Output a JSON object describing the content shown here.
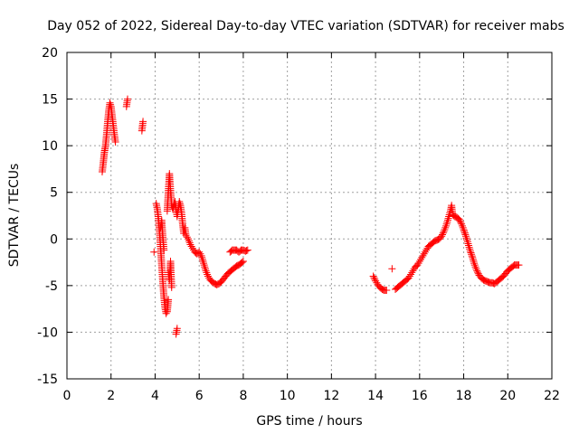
{
  "chart_data": {
    "type": "scatter",
    "title": "Day 052 of 2022, Sidereal Day-to-day VTEC variation (SDTVAR) for receiver mabs",
    "xlabel": "GPS time / hours",
    "ylabel": "SDTVAR / TECUs",
    "xlim": [
      0,
      22
    ],
    "ylim": [
      -15,
      20
    ],
    "xticks": [
      0,
      2,
      4,
      6,
      8,
      10,
      12,
      14,
      16,
      18,
      20,
      22
    ],
    "yticks": [
      -15,
      -10,
      -5,
      0,
      5,
      10,
      15,
      20
    ],
    "grid": true,
    "marker": "+",
    "color": "#ff0000",
    "series": [
      {
        "name": "SDTVAR",
        "segments": [
          [
            [
              1.6,
              7.2
            ],
            [
              1.65,
              8.2
            ],
            [
              1.7,
              9.3
            ],
            [
              1.75,
              10.0
            ],
            [
              1.8,
              11.2
            ],
            [
              1.85,
              12.6
            ],
            [
              1.9,
              13.8
            ],
            [
              1.95,
              14.6
            ],
            [
              2.0,
              14.2
            ],
            [
              2.05,
              13.2
            ],
            [
              2.1,
              12.2
            ],
            [
              2.15,
              11.2
            ],
            [
              2.2,
              10.4
            ]
          ],
          [
            [
              2.7,
              14.2
            ],
            [
              2.75,
              15.0
            ]
          ],
          [
            [
              3.4,
              11.6
            ],
            [
              3.45,
              12.6
            ]
          ],
          [
            [
              3.95,
              -1.4
            ]
          ],
          [
            [
              4.05,
              3.8
            ],
            [
              4.1,
              3.2
            ],
            [
              4.15,
              2.2
            ],
            [
              4.2,
              0.8
            ],
            [
              4.25,
              -1.0
            ],
            [
              4.3,
              -2.8
            ],
            [
              4.35,
              -4.6
            ],
            [
              4.4,
              -6.2
            ],
            [
              4.45,
              -7.4
            ],
            [
              4.5,
              -8.0
            ],
            [
              4.55,
              -7.8
            ],
            [
              4.6,
              -6.5
            ]
          ],
          [
            [
              4.25,
              1.2
            ],
            [
              4.3,
              2.0
            ],
            [
              4.35,
              0.2
            ],
            [
              4.4,
              -1.2
            ]
          ],
          [
            [
              4.55,
              3.0
            ],
            [
              4.6,
              5.0
            ],
            [
              4.65,
              7.0
            ],
            [
              4.7,
              5.2
            ],
            [
              4.75,
              3.6
            ],
            [
              4.8,
              3.2
            ],
            [
              4.85,
              3.6
            ],
            [
              4.9,
              4.0
            ],
            [
              4.95,
              3.2
            ],
            [
              5.0,
              2.4
            ],
            [
              5.05,
              3.2
            ],
            [
              5.1,
              4.0
            ],
            [
              5.15,
              3.6
            ],
            [
              5.2,
              2.8
            ],
            [
              5.25,
              1.6
            ],
            [
              5.3,
              0.6
            ],
            [
              5.35,
              1.2
            ],
            [
              5.4,
              0.4
            ],
            [
              5.5,
              0.0
            ],
            [
              5.6,
              -0.6
            ],
            [
              5.7,
              -1.0
            ],
            [
              5.8,
              -1.4
            ],
            [
              5.9,
              -1.6
            ],
            [
              6.0,
              -1.4
            ],
            [
              6.1,
              -1.8
            ],
            [
              6.2,
              -2.6
            ],
            [
              6.3,
              -3.4
            ],
            [
              6.4,
              -4.0
            ],
            [
              6.5,
              -4.4
            ],
            [
              6.6,
              -4.6
            ],
            [
              6.7,
              -4.8
            ],
            [
              6.8,
              -4.9
            ],
            [
              6.9,
              -4.8
            ],
            [
              7.0,
              -4.6
            ],
            [
              7.1,
              -4.3
            ],
            [
              7.2,
              -4.0
            ],
            [
              7.3,
              -3.7
            ],
            [
              7.4,
              -3.5
            ],
            [
              7.5,
              -3.3
            ],
            [
              7.6,
              -3.1
            ],
            [
              7.7,
              -2.9
            ],
            [
              7.8,
              -2.8
            ],
            [
              7.9,
              -2.6
            ],
            [
              8.0,
              -2.4
            ]
          ],
          [
            [
              4.6,
              -3.6
            ],
            [
              4.65,
              -4.4
            ],
            [
              4.7,
              -2.4
            ],
            [
              4.75,
              -5.2
            ]
          ],
          [
            [
              4.95,
              -10.2
            ],
            [
              5.0,
              -9.6
            ]
          ],
          [
            [
              7.4,
              -1.4
            ],
            [
              7.5,
              -1.2
            ],
            [
              7.6,
              -1.2
            ],
            [
              7.7,
              -1.2
            ],
            [
              7.8,
              -1.4
            ],
            [
              7.9,
              -1.2
            ],
            [
              8.0,
              -1.2
            ],
            [
              8.1,
              -1.3
            ],
            [
              8.2,
              -1.2
            ]
          ],
          [
            [
              13.9,
              -4.0
            ],
            [
              14.0,
              -4.5
            ],
            [
              14.1,
              -4.9
            ],
            [
              14.2,
              -5.2
            ],
            [
              14.3,
              -5.4
            ],
            [
              14.4,
              -5.5
            ],
            [
              14.5,
              -5.5
            ]
          ],
          [
            [
              14.75,
              -3.2
            ]
          ],
          [
            [
              14.9,
              -5.4
            ],
            [
              15.0,
              -5.2
            ],
            [
              15.1,
              -5.0
            ],
            [
              15.2,
              -4.8
            ],
            [
              15.3,
              -4.6
            ],
            [
              15.4,
              -4.4
            ],
            [
              15.5,
              -4.2
            ],
            [
              15.6,
              -3.8
            ],
            [
              15.7,
              -3.4
            ],
            [
              15.8,
              -3.0
            ],
            [
              15.9,
              -2.8
            ],
            [
              16.0,
              -2.4
            ],
            [
              16.1,
              -2.0
            ],
            [
              16.2,
              -1.6
            ],
            [
              16.3,
              -1.2
            ],
            [
              16.4,
              -0.8
            ],
            [
              16.5,
              -0.6
            ],
            [
              16.6,
              -0.4
            ],
            [
              16.7,
              -0.2
            ],
            [
              16.8,
              -0.1
            ],
            [
              16.9,
              0.0
            ],
            [
              17.0,
              0.3
            ],
            [
              17.1,
              0.8
            ],
            [
              17.2,
              1.4
            ],
            [
              17.3,
              2.2
            ],
            [
              17.4,
              3.0
            ],
            [
              17.45,
              3.6
            ],
            [
              17.5,
              2.6
            ],
            [
              17.6,
              2.4
            ],
            [
              17.7,
              2.3
            ],
            [
              17.8,
              2.1
            ],
            [
              17.9,
              1.6
            ],
            [
              18.0,
              1.0
            ],
            [
              18.1,
              0.3
            ],
            [
              18.2,
              -0.5
            ],
            [
              18.3,
              -1.3
            ],
            [
              18.4,
              -2.0
            ],
            [
              18.5,
              -2.8
            ],
            [
              18.6,
              -3.4
            ],
            [
              18.7,
              -3.9
            ],
            [
              18.8,
              -4.2
            ],
            [
              18.9,
              -4.4
            ],
            [
              19.0,
              -4.5
            ],
            [
              19.1,
              -4.6
            ],
            [
              19.2,
              -4.7
            ],
            [
              19.3,
              -4.7
            ],
            [
              19.4,
              -4.8
            ],
            [
              19.5,
              -4.6
            ],
            [
              19.6,
              -4.4
            ],
            [
              19.7,
              -4.2
            ],
            [
              19.8,
              -4.0
            ],
            [
              19.9,
              -3.7
            ],
            [
              20.0,
              -3.4
            ],
            [
              20.1,
              -3.2
            ],
            [
              20.2,
              -3.0
            ],
            [
              20.3,
              -2.8
            ],
            [
              20.4,
              -2.8
            ],
            [
              20.5,
              -2.8
            ]
          ]
        ]
      }
    ]
  }
}
